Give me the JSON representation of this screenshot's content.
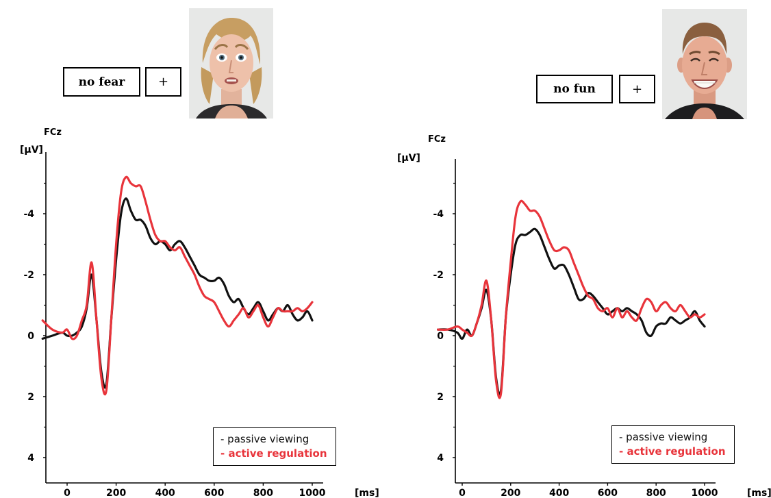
{
  "colors": {
    "passive": "#111111",
    "active": "#e8343b"
  },
  "panels": [
    {
      "cue": {
        "word": "no fear",
        "symbol": "+"
      },
      "face_icon": "fearful-face-photo",
      "electrode": "FCz",
      "unit_y": "[µV]",
      "unit_x": "[ms]",
      "y_ticks": [
        "-4",
        "-2",
        "0",
        "2",
        "4"
      ],
      "x_ticks": [
        "0",
        "200",
        "400",
        "600",
        "800",
        "1000"
      ],
      "legend": [
        "- passive viewing",
        "- active regulation"
      ]
    },
    {
      "cue": {
        "word": "no fun",
        "symbol": "+"
      },
      "face_icon": "smiling-face-photo",
      "electrode": "FCz",
      "unit_y": "[µV]",
      "unit_x": "[ms]",
      "y_ticks": [
        "-4",
        "-2",
        "0",
        "2",
        "4"
      ],
      "x_ticks": [
        "0",
        "200",
        "400",
        "600",
        "800",
        "1000"
      ],
      "legend": [
        "- passive viewing",
        "- active regulation"
      ]
    }
  ],
  "chart_data": [
    {
      "type": "line",
      "x_unit": "ms",
      "y_unit": "µV",
      "y_axis_inverted": true,
      "xlim": [
        -100,
        1000
      ],
      "ylim": [
        -5.5,
        5
      ],
      "series": [
        {
          "name": "passive viewing",
          "x": [
            -100,
            -60,
            -20,
            0,
            20,
            40,
            60,
            80,
            100,
            120,
            140,
            160,
            180,
            200,
            220,
            240,
            260,
            280,
            300,
            320,
            340,
            360,
            380,
            400,
            420,
            440,
            460,
            480,
            500,
            520,
            540,
            560,
            580,
            600,
            620,
            640,
            660,
            680,
            700,
            720,
            740,
            760,
            780,
            800,
            820,
            840,
            860,
            880,
            900,
            920,
            940,
            960,
            980,
            1000
          ],
          "y": [
            0.1,
            0,
            -0.1,
            0,
            0,
            -0.1,
            -0.3,
            -0.9,
            -2,
            -0.5,
            1.2,
            1.6,
            -0.5,
            -2.5,
            -4,
            -4.5,
            -4.1,
            -3.8,
            -3.8,
            -3.6,
            -3.2,
            -3,
            -3.1,
            -3,
            -2.8,
            -3,
            -3.1,
            -2.9,
            -2.6,
            -2.3,
            -2,
            -1.9,
            -1.8,
            -1.8,
            -1.9,
            -1.7,
            -1.3,
            -1.1,
            -1.2,
            -0.9,
            -0.7,
            -0.9,
            -1.1,
            -0.8,
            -0.5,
            -0.7,
            -0.9,
            -0.8,
            -1,
            -0.7,
            -0.5,
            -0.6,
            -0.8,
            -0.5
          ]
        },
        {
          "name": "active regulation",
          "x": [
            -100,
            -60,
            -20,
            0,
            20,
            40,
            60,
            80,
            100,
            120,
            140,
            160,
            180,
            200,
            220,
            240,
            260,
            280,
            300,
            320,
            340,
            360,
            380,
            400,
            420,
            440,
            460,
            480,
            500,
            520,
            540,
            560,
            580,
            600,
            620,
            640,
            660,
            680,
            700,
            720,
            740,
            760,
            780,
            800,
            820,
            840,
            860,
            880,
            900,
            920,
            940,
            960,
            980,
            1000
          ],
          "y": [
            -0.5,
            -0.2,
            -0.1,
            -0.2,
            0.1,
            0,
            -0.5,
            -1,
            -2.4,
            -0.5,
            1.4,
            1.8,
            -0.5,
            -3,
            -4.7,
            -5.2,
            -5,
            -4.9,
            -4.9,
            -4.4,
            -3.8,
            -3.3,
            -3.1,
            -3.1,
            -2.9,
            -2.8,
            -2.9,
            -2.6,
            -2.3,
            -2,
            -1.6,
            -1.3,
            -1.2,
            -1.1,
            -0.8,
            -0.5,
            -0.3,
            -0.5,
            -0.7,
            -0.9,
            -0.6,
            -0.8,
            -1,
            -0.6,
            -0.3,
            -0.6,
            -0.9,
            -0.8,
            -0.8,
            -0.8,
            -0.9,
            -0.8,
            -0.9,
            -1.1
          ]
        }
      ]
    },
    {
      "type": "line",
      "x_unit": "ms",
      "y_unit": "µV",
      "y_axis_inverted": true,
      "xlim": [
        -100,
        1000
      ],
      "ylim": [
        -5.5,
        5
      ],
      "series": [
        {
          "name": "passive viewing",
          "x": [
            -100,
            -60,
            -20,
            0,
            20,
            40,
            60,
            80,
            100,
            120,
            140,
            160,
            180,
            200,
            220,
            240,
            260,
            280,
            300,
            320,
            340,
            360,
            380,
            400,
            420,
            440,
            460,
            480,
            500,
            520,
            540,
            560,
            580,
            600,
            620,
            640,
            660,
            680,
            700,
            720,
            740,
            760,
            780,
            800,
            820,
            840,
            860,
            880,
            900,
            920,
            940,
            960,
            980,
            1000
          ],
          "y": [
            -0.2,
            -0.2,
            -0.1,
            0.1,
            -0.2,
            0,
            -0.4,
            -0.9,
            -1.5,
            -0.5,
            1.4,
            1.8,
            -0.6,
            -2,
            -3,
            -3.3,
            -3.3,
            -3.4,
            -3.5,
            -3.3,
            -2.9,
            -2.5,
            -2.2,
            -2.3,
            -2.3,
            -2,
            -1.6,
            -1.2,
            -1.2,
            -1.4,
            -1.3,
            -1.1,
            -0.9,
            -0.7,
            -0.8,
            -0.9,
            -0.8,
            -0.9,
            -0.8,
            -0.7,
            -0.5,
            -0.1,
            0,
            -0.3,
            -0.4,
            -0.4,
            -0.6,
            -0.5,
            -0.4,
            -0.5,
            -0.6,
            -0.8,
            -0.5,
            -0.3
          ]
        },
        {
          "name": "active regulation",
          "x": [
            -100,
            -60,
            -20,
            0,
            20,
            40,
            60,
            80,
            100,
            120,
            140,
            160,
            180,
            200,
            220,
            240,
            260,
            280,
            300,
            320,
            340,
            360,
            380,
            400,
            420,
            440,
            460,
            480,
            500,
            520,
            540,
            560,
            580,
            600,
            620,
            640,
            660,
            680,
            700,
            720,
            740,
            760,
            780,
            800,
            820,
            840,
            860,
            880,
            900,
            920,
            940,
            960,
            980,
            1000
          ],
          "y": [
            -0.2,
            -0.2,
            -0.3,
            -0.2,
            -0.1,
            0,
            -0.4,
            -1,
            -1.8,
            -0.5,
            1.5,
            1.9,
            -0.6,
            -2.4,
            -3.9,
            -4.4,
            -4.3,
            -4.1,
            -4.1,
            -3.9,
            -3.5,
            -3.1,
            -2.8,
            -2.8,
            -2.9,
            -2.8,
            -2.4,
            -2,
            -1.6,
            -1.3,
            -1.2,
            -0.9,
            -0.8,
            -0.9,
            -0.6,
            -0.9,
            -0.6,
            -0.8,
            -0.6,
            -0.5,
            -0.9,
            -1.2,
            -1.1,
            -0.8,
            -1,
            -1.1,
            -0.9,
            -0.8,
            -1,
            -0.8,
            -0.6,
            -0.7,
            -0.6,
            -0.7
          ]
        }
      ]
    }
  ]
}
